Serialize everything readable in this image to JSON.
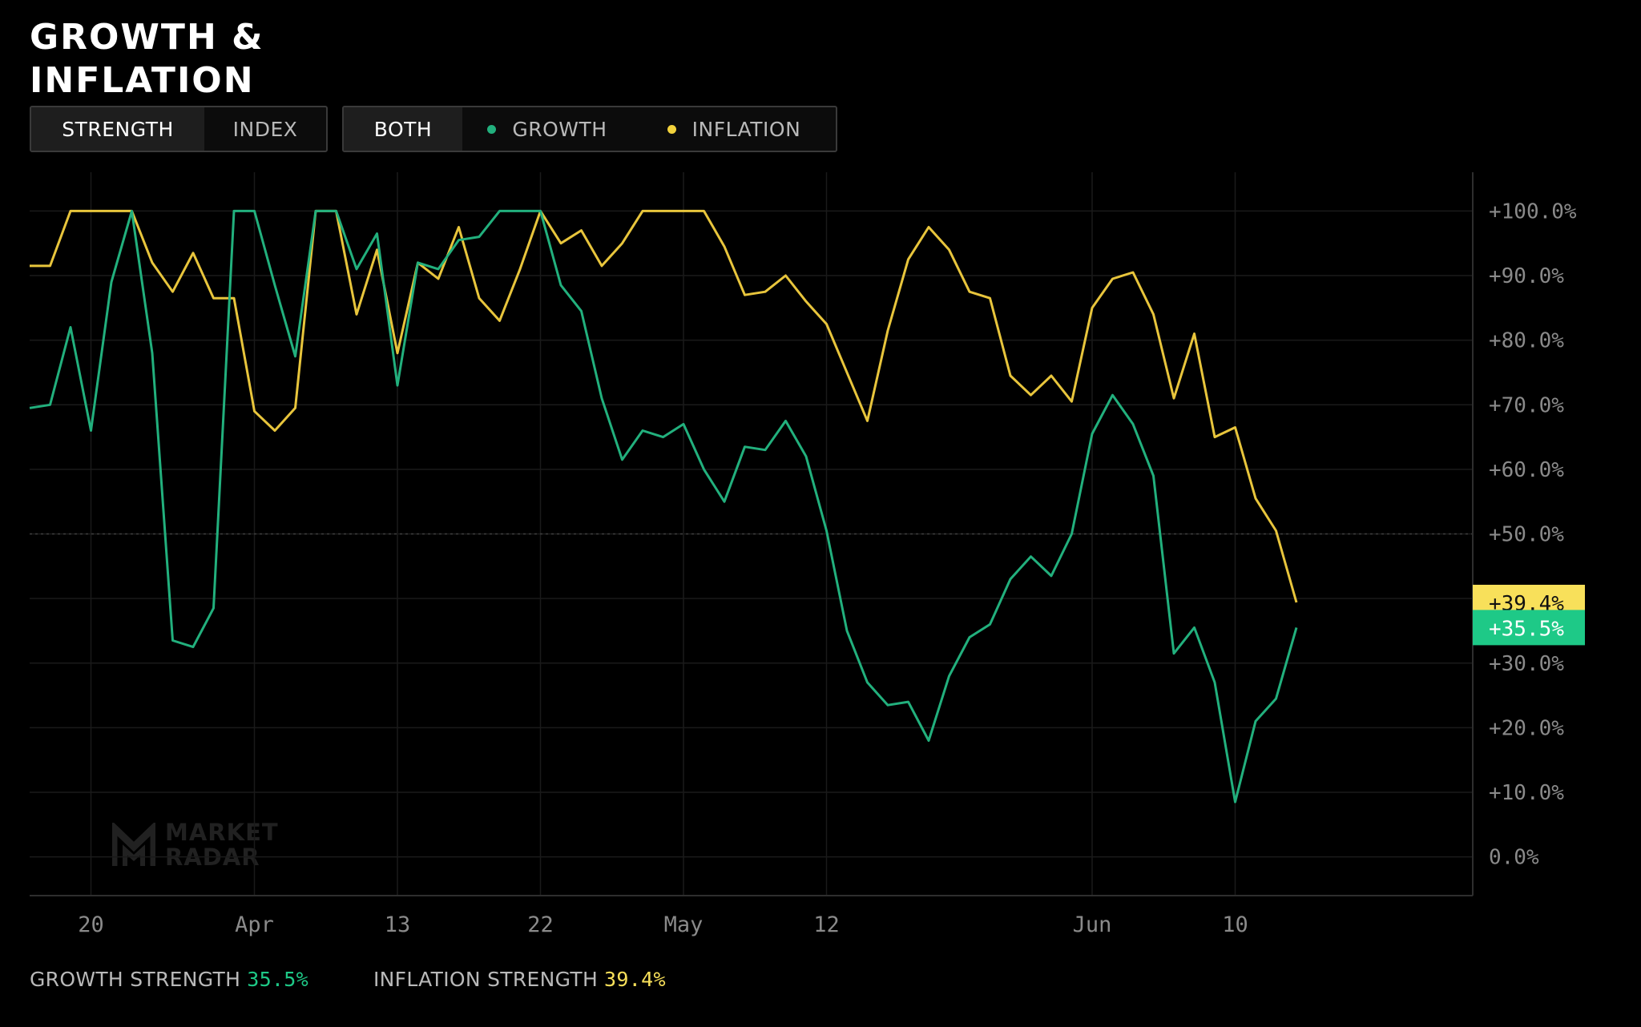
{
  "title": "GROWTH & INFLATION",
  "toggle_mode": {
    "items": [
      {
        "label": "STRENGTH",
        "active": true
      },
      {
        "label": "INDEX",
        "active": false
      }
    ]
  },
  "toggle_series": {
    "items": [
      {
        "label": "BOTH",
        "active": true
      },
      {
        "label": "GROWTH",
        "active": false,
        "dot": "#22b07d"
      },
      {
        "label": "INFLATION",
        "active": false,
        "dot": "#f2d23c"
      }
    ]
  },
  "footer": {
    "growth_label": "GROWTH STRENGTH",
    "growth_value": "35.5%",
    "inflation_label": "INFLATION STRENGTH",
    "inflation_value": "39.4%"
  },
  "watermark": {
    "line1": "MARKET",
    "line2": "RADAR"
  },
  "colors": {
    "growth": "#22b07d",
    "inflation": "#e8c53c",
    "inflation_badge": "#f8e05a",
    "growth_badge": "#1ec987",
    "grid": "#1a1a1a"
  },
  "chart_data": {
    "type": "line",
    "x_tick_labels": [
      "20",
      "Apr",
      "13",
      "22",
      "May",
      "12",
      "Jun",
      "10"
    ],
    "x_tick_indices": [
      3,
      11,
      18,
      25,
      32,
      39,
      52,
      59
    ],
    "y_ticks": [
      "+100.0%",
      "+90.0%",
      "+80.0%",
      "+70.0%",
      "+60.0%",
      "+50.0%",
      "+30.0%",
      "+20.0%",
      "+10.0%",
      "0.0%"
    ],
    "y_tick_values": [
      100,
      90,
      80,
      70,
      60,
      50,
      30,
      20,
      10,
      0
    ],
    "ylim": [
      -6,
      106
    ],
    "reference_line": 50,
    "grid": true,
    "series": [
      {
        "name": "GROWTH",
        "color": "#22b07d",
        "end_label": "+35.5%",
        "values": [
          69.5,
          70,
          82,
          66,
          89,
          100,
          78,
          33.5,
          32.5,
          38.5,
          100,
          100,
          88.5,
          77.5,
          100,
          100,
          91,
          96.5,
          73,
          92,
          91,
          95.5,
          96,
          100,
          100,
          100,
          88.5,
          84.5,
          71,
          61.5,
          66,
          65,
          67,
          60,
          55,
          63.5,
          63,
          67.5,
          62,
          50.5,
          35,
          27,
          23.5,
          24,
          18,
          28,
          34,
          36,
          43,
          46.5,
          43.5,
          50,
          65.5,
          71.5,
          67,
          59,
          31.5,
          35.5,
          27,
          8.5,
          21,
          24.5,
          35.5
        ]
      },
      {
        "name": "INFLATION",
        "color": "#e8c53c",
        "end_label": "+39.4%",
        "values": [
          91.5,
          91.5,
          100,
          100,
          100,
          100,
          92,
          87.5,
          93.5,
          86.5,
          86.5,
          69,
          66,
          69.5,
          100,
          100,
          84,
          94,
          78,
          92,
          89.5,
          97.5,
          86.5,
          83,
          91,
          100,
          95,
          97,
          91.5,
          95,
          100,
          100,
          100,
          100,
          94.5,
          87,
          87.5,
          90,
          86,
          82.5,
          75,
          67.5,
          81.5,
          92.5,
          97.5,
          94,
          87.5,
          86.5,
          74.5,
          71.5,
          74.5,
          70.5,
          85,
          89.5,
          90.5,
          84,
          71,
          81,
          65,
          66.5,
          55.5,
          50.5,
          39.4
        ]
      }
    ]
  }
}
